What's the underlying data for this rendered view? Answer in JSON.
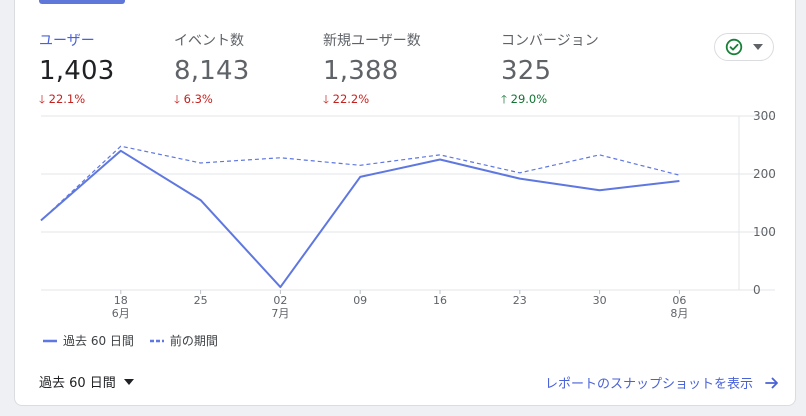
{
  "metrics": [
    {
      "label": "ユーザー",
      "value": "1,403",
      "delta": "22.1%",
      "direction": "down",
      "arrow": "🡓",
      "active": true
    },
    {
      "label": "イベント数",
      "value": "8,143",
      "delta": "6.3%",
      "direction": "down",
      "arrow": "🡓",
      "active": false
    },
    {
      "label": "新規ユーザー数",
      "value": "1,388",
      "delta": "22.2%",
      "direction": "down",
      "arrow": "🡓",
      "active": false
    },
    {
      "label": "コンバージョン",
      "value": "325",
      "delta": "29.0%",
      "direction": "up",
      "arrow": "🡑",
      "active": false
    }
  ],
  "compare_button": {
    "icon": "check-circle-icon",
    "dropdown_icon": "caret-down-icon"
  },
  "chart_data": {
    "type": "line",
    "x": [
      {
        "day": "",
        "month": ""
      },
      {
        "day": "18",
        "month": "6月"
      },
      {
        "day": "25",
        "month": ""
      },
      {
        "day": "02",
        "month": "7月"
      },
      {
        "day": "09",
        "month": ""
      },
      {
        "day": "16",
        "month": ""
      },
      {
        "day": "23",
        "month": ""
      },
      {
        "day": "30",
        "month": ""
      },
      {
        "day": "06",
        "month": "8月"
      }
    ],
    "series": [
      {
        "name": "過去 60 日間",
        "style": "solid",
        "color": "#5f77e0",
        "values": [
          120,
          240,
          155,
          5,
          195,
          225,
          192,
          172,
          188
        ]
      },
      {
        "name": "前の期間",
        "style": "dashed",
        "color": "#5f77e0",
        "values": [
          120,
          248,
          219,
          228,
          215,
          233,
          202,
          233,
          198
        ]
      }
    ],
    "y_ticks": [
      "0",
      "100",
      "200",
      "300"
    ],
    "ylim": [
      0,
      300
    ],
    "grid": true,
    "legend": "bottom-left"
  },
  "footer": {
    "range_label": "過去 60 日間",
    "snapshot_link": "レポートのスナップショットを表示"
  },
  "colors": {
    "accent": "#4a62d8",
    "down": "#c5221f",
    "up": "#137333",
    "check": "#188038"
  }
}
